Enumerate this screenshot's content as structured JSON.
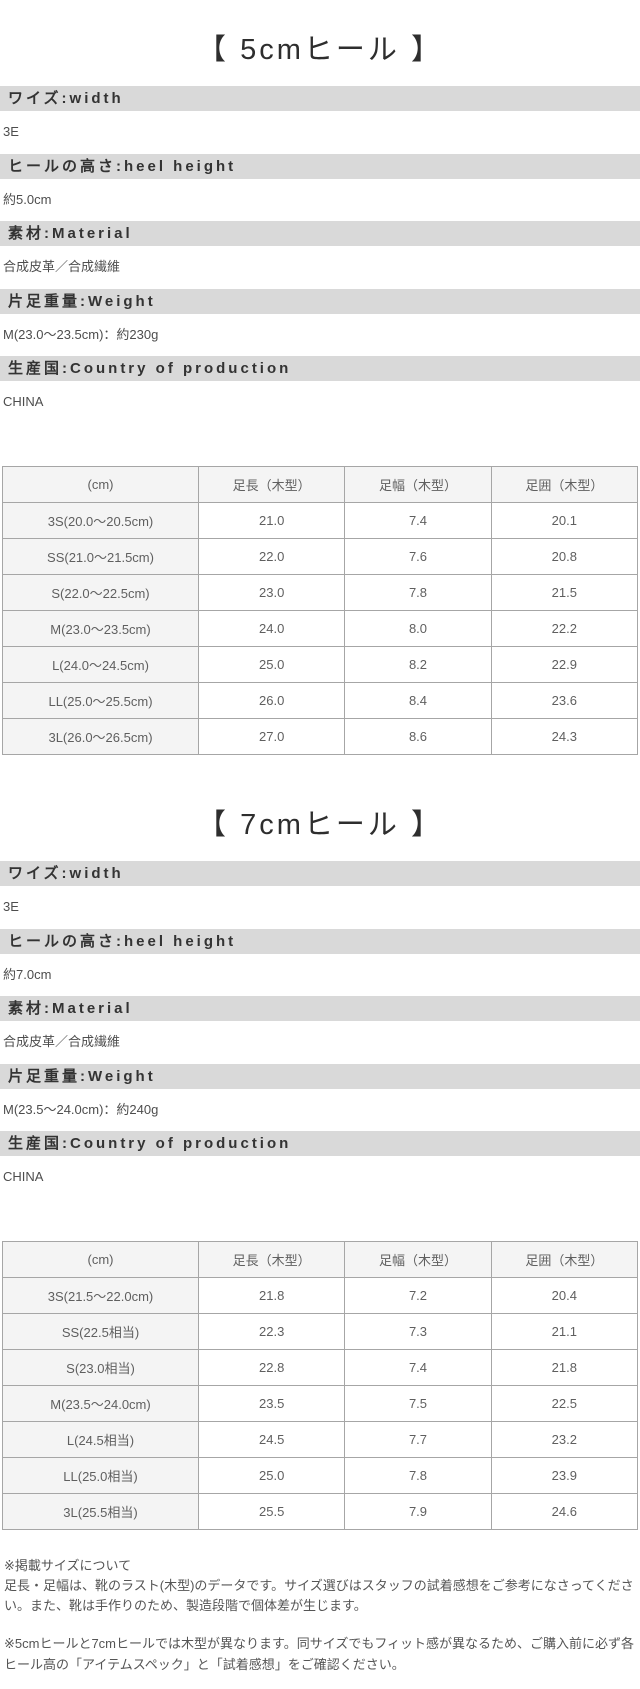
{
  "colors": {
    "section_header_bg": "#d9d9d9",
    "table_header_bg": "#f4f4f4",
    "table_border": "#a6a6a6",
    "title_text": "#2e2e2e",
    "body_text": "#4d4d4d"
  },
  "sections": [
    {
      "title": "【 5cmヒール 】",
      "specs": [
        {
          "label": "ワイズ:width",
          "value": "3E"
        },
        {
          "label": "ヒールの高さ:heel height",
          "value": "約5.0cm"
        },
        {
          "label": "素材:Material",
          "value": "合成皮革／合成繊維"
        },
        {
          "label": "片足重量:Weight",
          "value": "M(23.0〜23.5cm)：約230g"
        },
        {
          "label": "生産国:Country of production",
          "value": "CHINA"
        }
      ],
      "table": {
        "headers": [
          "(cm)",
          "足長（木型）",
          "足幅（木型）",
          "足囲（木型）"
        ],
        "rows": [
          [
            "3S(20.0〜20.5cm)",
            "21.0",
            "7.4",
            "20.1"
          ],
          [
            "SS(21.0〜21.5cm)",
            "22.0",
            "7.6",
            "20.8"
          ],
          [
            "S(22.0〜22.5cm)",
            "23.0",
            "7.8",
            "21.5"
          ],
          [
            "M(23.0〜23.5cm)",
            "24.0",
            "8.0",
            "22.2"
          ],
          [
            "L(24.0〜24.5cm)",
            "25.0",
            "8.2",
            "22.9"
          ],
          [
            "LL(25.0〜25.5cm)",
            "26.0",
            "8.4",
            "23.6"
          ],
          [
            "3L(26.0〜26.5cm)",
            "27.0",
            "8.6",
            "24.3"
          ]
        ]
      }
    },
    {
      "title": "【 7cmヒール 】",
      "specs": [
        {
          "label": "ワイズ:width",
          "value": "3E"
        },
        {
          "label": "ヒールの高さ:heel height",
          "value": "約7.0cm"
        },
        {
          "label": "素材:Material",
          "value": "合成皮革／合成繊維"
        },
        {
          "label": "片足重量:Weight",
          "value": "M(23.5〜24.0cm)：約240g"
        },
        {
          "label": "生産国:Country of production",
          "value": "CHINA"
        }
      ],
      "table": {
        "headers": [
          "(cm)",
          "足長（木型）",
          "足幅（木型）",
          "足囲（木型）"
        ],
        "rows": [
          [
            "3S(21.5〜22.0cm)",
            "21.8",
            "7.2",
            "20.4"
          ],
          [
            "SS(22.5相当)",
            "22.3",
            "7.3",
            "21.1"
          ],
          [
            "S(23.0相当)",
            "22.8",
            "7.4",
            "21.8"
          ],
          [
            "M(23.5〜24.0cm)",
            "23.5",
            "7.5",
            "22.5"
          ],
          [
            "L(24.5相当)",
            "24.5",
            "7.7",
            "23.2"
          ],
          [
            "LL(25.0相当)",
            "25.0",
            "7.8",
            "23.9"
          ],
          [
            "3L(25.5相当)",
            "25.5",
            "7.9",
            "24.6"
          ]
        ]
      }
    }
  ],
  "footnotes": [
    "※掲載サイズについて\n足長・足幅は、靴のラスト(木型)のデータです。サイズ選びはスタッフの試着感想をご参考になさってください。また、靴は手作りのため、製造段階で個体差が生じます。",
    "※5cmヒールと7cmヒールでは木型が異なります。同サイズでもフィット感が異なるため、ご購入前に必ず各ヒール高の「アイテムスペック」と「試着感想」をご確認ください。"
  ]
}
